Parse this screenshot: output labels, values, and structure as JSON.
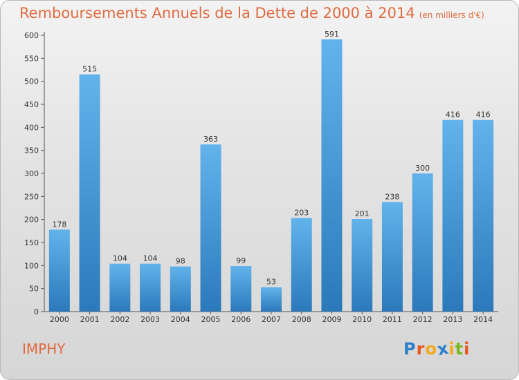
{
  "header": {
    "title": "Remboursements Annuels de la Dette de 2000 à 2014",
    "subtitle": "(en milliers d'€)"
  },
  "footer": {
    "commune": "IMPHY",
    "brand": [
      "P",
      "r",
      "o",
      "x",
      "i",
      "t",
      "i"
    ],
    "brand_colors": [
      "#2b7fc9",
      "#e8561e",
      "#f4a81b",
      "#2b7fc9",
      "#f4a81b",
      "#7ab51d",
      "#e8561e"
    ]
  },
  "chart_data": {
    "type": "bar",
    "title": "Remboursements Annuels de la Dette de 2000 à 2014",
    "subtitle": "(en milliers d'€)",
    "xlabel": "",
    "ylabel": "",
    "categories": [
      "2000",
      "2001",
      "2002",
      "2003",
      "2004",
      "2005",
      "2006",
      "2007",
      "2008",
      "2009",
      "2010",
      "2011",
      "2012",
      "2013",
      "2014"
    ],
    "values": [
      178,
      515,
      104,
      104,
      98,
      363,
      99,
      53,
      203,
      591,
      201,
      238,
      300,
      416,
      416
    ],
    "ylim": [
      0,
      600
    ],
    "yticks": [
      0,
      50,
      100,
      150,
      200,
      250,
      300,
      350,
      400,
      450,
      500,
      550,
      600
    ],
    "grid": false,
    "colors": {
      "bar_light": "#62b3ec",
      "bar_dark": "#2b79ba"
    }
  }
}
